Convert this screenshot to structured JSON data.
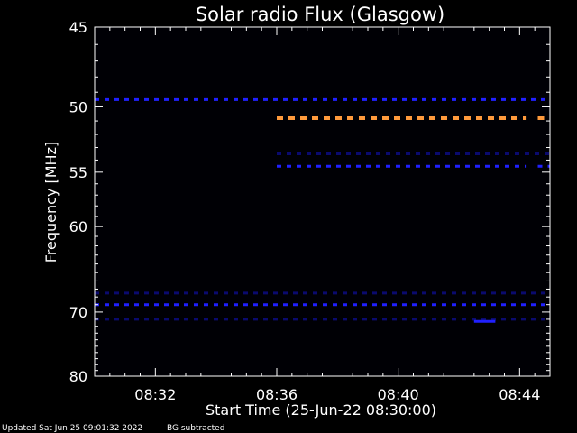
{
  "chart_data": {
    "type": "heatmap",
    "title": "Solar radio Flux (Glasgow)",
    "xlabel": "Start Time (25-Jun-22 08:30:00)",
    "ylabel": "Frequency [MHz]",
    "x_range_minutes": [
      0.0,
      15.0
    ],
    "x_ticks": [
      {
        "label": "08:32",
        "minute": 2
      },
      {
        "label": "08:36",
        "minute": 6
      },
      {
        "label": "08:40",
        "minute": 10
      },
      {
        "label": "08:44",
        "minute": 14
      }
    ],
    "y_range_mhz": [
      45,
      80
    ],
    "y_scale": "reciprocal",
    "y_ticks": [
      45,
      50,
      55,
      60,
      70,
      80
    ],
    "colors": {
      "background": "#000000",
      "plot_bg": "#000005",
      "axes": "#ffffff",
      "low": "#0a0a6e",
      "mid": "#2020ff",
      "high": "#ff9a3c"
    },
    "bands": [
      {
        "freq_mhz": 49.5,
        "start_min": 0.0,
        "end_min": 15.0,
        "intensity": "mid",
        "style": "dashed"
      },
      {
        "freq_mhz": 50.8,
        "start_min": 6.0,
        "end_min": 14.2,
        "intensity": "high",
        "style": "dashed"
      },
      {
        "freq_mhz": 50.8,
        "start_min": 14.6,
        "end_min": 15.0,
        "intensity": "high",
        "style": "dashed"
      },
      {
        "freq_mhz": 53.5,
        "start_min": 6.0,
        "end_min": 15.0,
        "intensity": "low",
        "style": "dashed"
      },
      {
        "freq_mhz": 54.5,
        "start_min": 6.0,
        "end_min": 14.2,
        "intensity": "mid",
        "style": "dashed"
      },
      {
        "freq_mhz": 54.5,
        "start_min": 14.6,
        "end_min": 15.0,
        "intensity": "mid",
        "style": "dashed"
      },
      {
        "freq_mhz": 67.5,
        "start_min": 0.0,
        "end_min": 15.0,
        "intensity": "low",
        "style": "dashed"
      },
      {
        "freq_mhz": 69.0,
        "start_min": 0.0,
        "end_min": 15.0,
        "intensity": "mid",
        "style": "dashed"
      },
      {
        "freq_mhz": 71.0,
        "start_min": 0.0,
        "end_min": 15.0,
        "intensity": "low",
        "style": "dashed"
      },
      {
        "freq_mhz": 71.3,
        "start_min": 12.5,
        "end_min": 13.2,
        "intensity": "mid",
        "style": "solid"
      }
    ]
  },
  "footer": {
    "updated": "Updated Sat Jun 25 09:01:32 2022",
    "note": "BG subtracted"
  }
}
